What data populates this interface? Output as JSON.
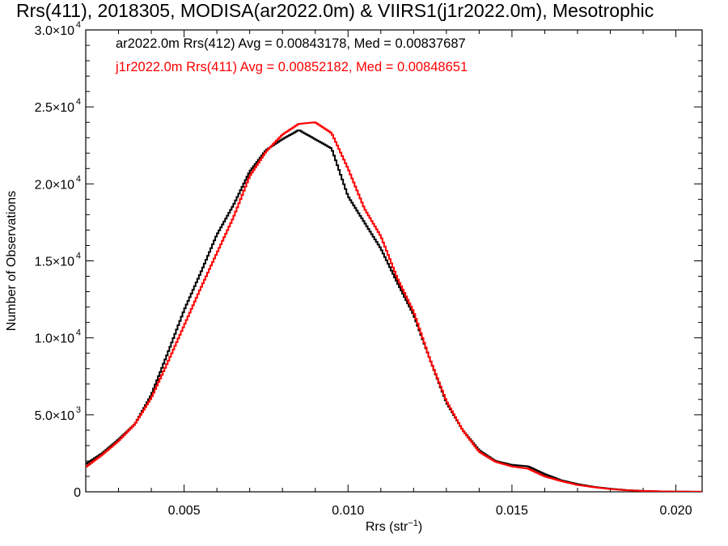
{
  "title": "Rrs(411), 2018305, MODISA(ar2022.0m) & VIIRS1(j1r2022.0m), Mesotrophic",
  "legend": [
    {
      "text": "ar2022.0m Rrs(412) Avg = 0.00843178, Med = 0.00837687",
      "color": "#000000"
    },
    {
      "text": "j1r2022.0m Rrs(411) Avg = 0.00852182, Med = 0.00848651",
      "color": "#ff0000"
    }
  ],
  "chart_data": {
    "type": "line",
    "xlabel_main": "Rrs (str",
    "xlabel_sup": "−1",
    "xlabel_tail": ")",
    "ylabel": "Number of Observations",
    "xlim": [
      0.002,
      0.0208
    ],
    "ylim": [
      0,
      30000
    ],
    "x_ticks": [
      {
        "value": 0.005,
        "label": "0.005"
      },
      {
        "value": 0.01,
        "label": "0.010"
      },
      {
        "value": 0.015,
        "label": "0.015"
      },
      {
        "value": 0.02,
        "label": "0.020"
      }
    ],
    "y_ticks": [
      {
        "value": 0,
        "mant": "0",
        "exp": ""
      },
      {
        "value": 5000,
        "mant": "5.0×10",
        "exp": "3"
      },
      {
        "value": 10000,
        "mant": "1.0×10",
        "exp": "4"
      },
      {
        "value": 15000,
        "mant": "1.5×10",
        "exp": "4"
      },
      {
        "value": 20000,
        "mant": "2.0×10",
        "exp": "4"
      },
      {
        "value": 25000,
        "mant": "2.5×10",
        "exp": "4"
      },
      {
        "value": 30000,
        "mant": "3.0×10",
        "exp": "4"
      }
    ],
    "series": [
      {
        "name": "ar2022.0m Rrs(412)",
        "color": "#000000",
        "x": [
          0.002,
          0.0025,
          0.003,
          0.0035,
          0.004,
          0.0045,
          0.005,
          0.0055,
          0.006,
          0.0065,
          0.007,
          0.0075,
          0.008,
          0.0085,
          0.009,
          0.0095,
          0.01,
          0.0105,
          0.011,
          0.0115,
          0.012,
          0.0125,
          0.013,
          0.0135,
          0.014,
          0.0145,
          0.015,
          0.0155,
          0.016,
          0.0165,
          0.017,
          0.0175,
          0.018,
          0.0185,
          0.019,
          0.0195,
          0.02,
          0.0208
        ],
        "y": [
          1800,
          2500,
          3400,
          4400,
          6300,
          9000,
          11800,
          14200,
          16700,
          18600,
          20800,
          22200,
          22900,
          23500,
          22900,
          22300,
          19200,
          17500,
          15800,
          13600,
          11500,
          8600,
          5800,
          4000,
          2700,
          2000,
          1750,
          1650,
          1150,
          750,
          500,
          320,
          200,
          110,
          60,
          30,
          15,
          5
        ]
      },
      {
        "name": "j1r2022.0m Rrs(411)",
        "color": "#ff0000",
        "x": [
          0.002,
          0.0025,
          0.003,
          0.0035,
          0.004,
          0.0045,
          0.005,
          0.0055,
          0.006,
          0.0065,
          0.007,
          0.0075,
          0.008,
          0.0085,
          0.009,
          0.0095,
          0.01,
          0.0105,
          0.011,
          0.0115,
          0.012,
          0.0125,
          0.013,
          0.0135,
          0.014,
          0.0145,
          0.015,
          0.0155,
          0.016,
          0.0165,
          0.017,
          0.0175,
          0.018,
          0.0185,
          0.019,
          0.0195,
          0.02,
          0.0208
        ],
        "y": [
          1600,
          2400,
          3300,
          4400,
          6100,
          8400,
          10800,
          13200,
          15500,
          17800,
          20500,
          22100,
          23200,
          23900,
          24000,
          23300,
          21000,
          18400,
          16600,
          13900,
          11700,
          8600,
          5900,
          4000,
          2600,
          1950,
          1650,
          1500,
          1000,
          700,
          450,
          300,
          180,
          100,
          55,
          30,
          15,
          5
        ]
      }
    ]
  }
}
